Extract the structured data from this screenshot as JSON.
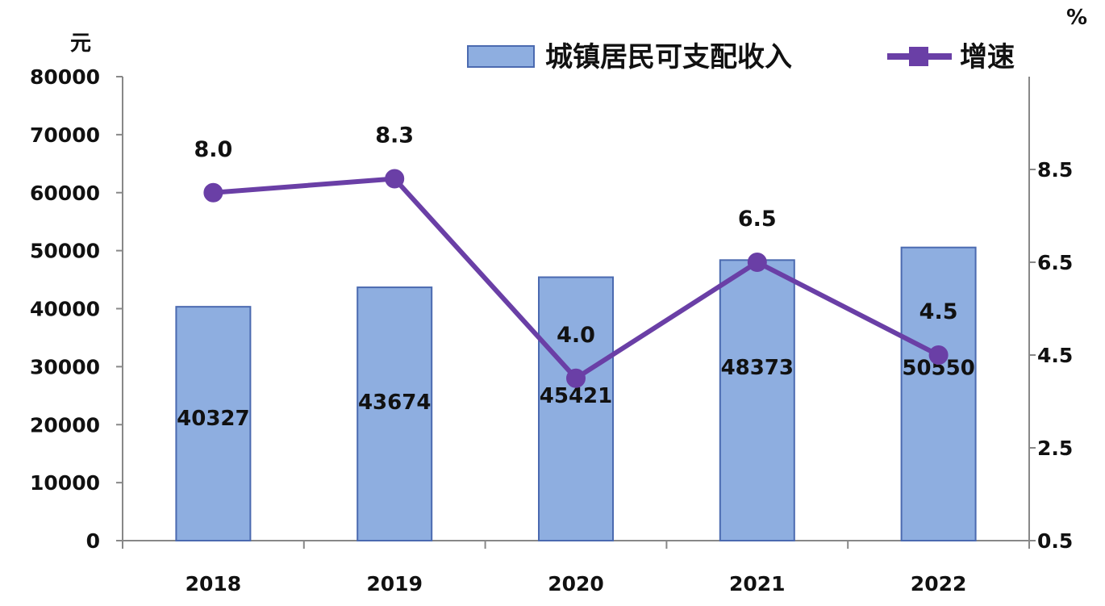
{
  "chart_data": {
    "type": "bar",
    "categories": [
      "2018",
      "2019",
      "2020",
      "2021",
      "2022"
    ],
    "series": [
      {
        "name": "城镇居民可支配收入",
        "type": "bar",
        "axis": "left",
        "values": [
          40327,
          43674,
          45421,
          48373,
          50550
        ],
        "labels": [
          "40327",
          "43674",
          "45421",
          "48373",
          "50550"
        ]
      },
      {
        "name": "增速",
        "type": "line",
        "axis": "right",
        "values": [
          8.0,
          8.3,
          4.0,
          6.5,
          4.5
        ],
        "labels": [
          "8.0",
          "8.3",
          "4.0",
          "6.5",
          "4.5"
        ]
      }
    ],
    "y_left": {
      "unit": "元",
      "ticks": [
        "0",
        "10000",
        "20000",
        "30000",
        "40000",
        "50000",
        "60000",
        "70000",
        "80000"
      ],
      "range": [
        0,
        80000
      ]
    },
    "y_right": {
      "unit": "%",
      "ticks": [
        "0.5",
        "2.5",
        "4.5",
        "6.5",
        "8.5"
      ],
      "range": [
        0.5,
        10.5
      ]
    },
    "legend": {
      "position": "top-right",
      "items": [
        "城镇居民可支配收入",
        "增速"
      ]
    },
    "colors": {
      "bar_fill": "#8eaee0",
      "bar_stroke": "#4b6ab0",
      "line": "#6a3fa6",
      "marker": "#6a3fa6",
      "axis": "#888888"
    },
    "grid": false
  }
}
